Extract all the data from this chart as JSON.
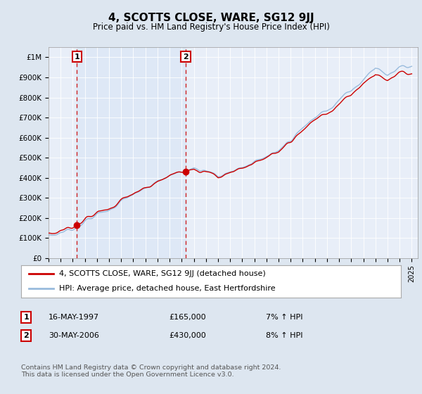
{
  "title": "4, SCOTTS CLOSE, WARE, SG12 9JJ",
  "subtitle": "Price paid vs. HM Land Registry's House Price Index (HPI)",
  "legend_line1": "4, SCOTTS CLOSE, WARE, SG12 9JJ (detached house)",
  "legend_line2": "HPI: Average price, detached house, East Hertfordshire",
  "annotation1_label": "1",
  "annotation1_date": "16-MAY-1997",
  "annotation1_price": "£165,000",
  "annotation1_hpi": "7% ↑ HPI",
  "annotation2_label": "2",
  "annotation2_date": "30-MAY-2006",
  "annotation2_price": "£430,000",
  "annotation2_hpi": "8% ↑ HPI",
  "footnote": "Contains HM Land Registry data © Crown copyright and database right 2024.\nThis data is licensed under the Open Government Licence v3.0.",
  "bg_color": "#dde6f0",
  "plot_bg_color": "#e8eef8",
  "line_color_house": "#cc0000",
  "line_color_hpi": "#99bbdd",
  "dot_color": "#cc0000",
  "vline_color": "#cc0000",
  "box_color": "#cc0000",
  "ylim_min": 0,
  "ylim_max": 1050000,
  "x_start_year": 1995,
  "x_end_year": 2025,
  "sale1_yr": 1997.37,
  "sale1_val": 165000,
  "sale2_yr": 2006.37,
  "sale2_val": 430000
}
